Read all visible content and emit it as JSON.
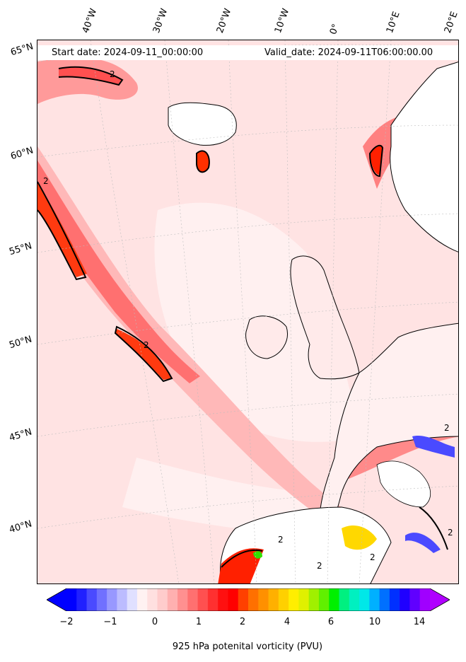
{
  "header": {
    "start_date": "Start date: 2024-09-11_00:00:00",
    "valid_date": "Valid_date: 2024-09-11T06:00:00.00"
  },
  "longitude_labels": [
    "40°W",
    "30°W",
    "20°W",
    "10°W",
    "0°",
    "10°E",
    "20°E"
  ],
  "latitude_labels": [
    "65°N",
    "60°N",
    "55°N",
    "50°N",
    "45°N",
    "40°N"
  ],
  "contour_labels": [
    "2",
    "2",
    "2",
    "2",
    "2",
    "2",
    "2",
    "2"
  ],
  "colorbar": {
    "label": "925 hPa potenital vorticity (PVU)",
    "ticks": [
      "−2",
      "−1",
      "0",
      "1",
      "2",
      "4",
      "6",
      "10",
      "14"
    ],
    "colors": [
      "#0000ff",
      "#2020ff",
      "#4a4aff",
      "#7070ff",
      "#9898ff",
      "#bcbcff",
      "#e0e0ff",
      "#fff2f2",
      "#ffe0e0",
      "#ffcccc",
      "#ffb0b0",
      "#ff9090",
      "#ff7070",
      "#ff5050",
      "#ff3030",
      "#ff1010",
      "#ff0000",
      "#ff4000",
      "#ff7000",
      "#ff9000",
      "#ffb000",
      "#ffd000",
      "#ffee00",
      "#e0f000",
      "#a0f000",
      "#60f000",
      "#00f000",
      "#00f080",
      "#00f0c0",
      "#00e8e8",
      "#00b0ff",
      "#0070ff",
      "#0030ff",
      "#2000ff",
      "#6000ff",
      "#a000ff"
    ],
    "min_color": "#0000ff",
    "max_color": "#b000ff"
  },
  "colors": {
    "field_background": "#ffe3e3",
    "high_pv": "#ff4a4a",
    "land": "#ffffff",
    "coast": "#000000"
  }
}
